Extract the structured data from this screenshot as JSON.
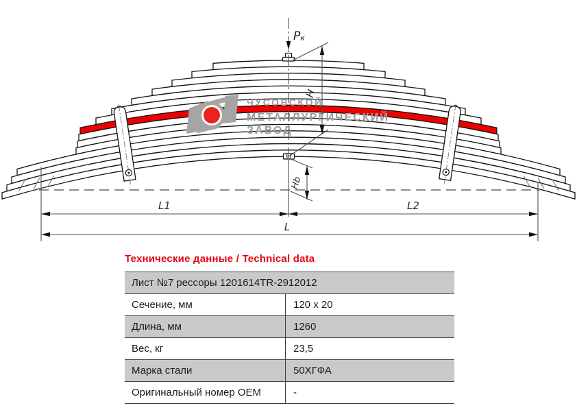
{
  "drawing": {
    "force_label_main": "P",
    "force_label_sub": "к",
    "dim_h": "H",
    "dim_hb": "Hb",
    "dim_l1": "L1",
    "dim_l2": "L2",
    "dim_l": "L",
    "leaf_outline_color": "#141414",
    "highlight_leaf_color": "#ee0000",
    "dim_line_color": "#4f4f4f",
    "leaf_half_lengths": [
      110,
      141,
      170,
      199,
      229,
      258,
      281,
      304,
      306,
      308,
      310,
      396,
      404,
      411,
      418
    ],
    "highlighted_leaf_index": 7,
    "watermark": {
      "line1": "ЧУСОВСКОЙ",
      "line2": "МЕТАЛЛУРГИЧЕСКИЙ",
      "line3": "ЗАВОД",
      "text_color": "#9c9c9c",
      "logo_gray": "#a5a5a5",
      "logo_red": "#e82320"
    }
  },
  "table": {
    "title": "Технические данные / Technical data",
    "title_color": "#e30613",
    "header_row": "Лист №7 рессоры 1201614TR-2912012",
    "rows": [
      {
        "label": "Сечение, мм",
        "value": "120 x 20"
      },
      {
        "label": "Длина, мм",
        "value": "1260"
      },
      {
        "label": "Вес, кг",
        "value": "23,5"
      },
      {
        "label": "Марка стали",
        "value": "50ХГФА"
      },
      {
        "label": "Оригинальный номер OEM",
        "value": "-"
      }
    ],
    "gray_row_bg": "#c9c9c9"
  }
}
